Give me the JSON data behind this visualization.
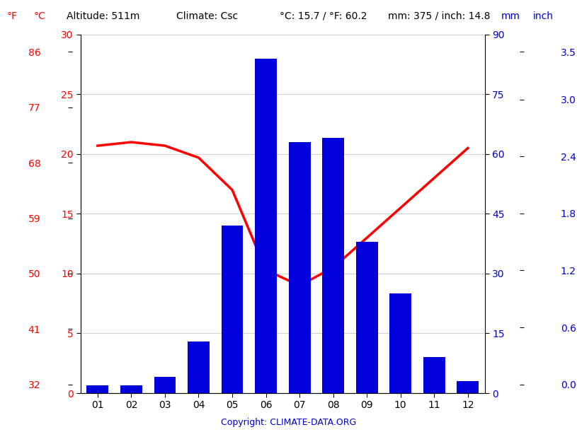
{
  "months": [
    "01",
    "02",
    "03",
    "04",
    "05",
    "06",
    "07",
    "08",
    "09",
    "10",
    "11",
    "12"
  ],
  "temp_c": [
    20.7,
    21.0,
    20.7,
    19.7,
    17.0,
    10.3,
    9.0,
    10.5,
    13.0,
    15.5,
    18.0,
    20.5
  ],
  "precip_mm": [
    2,
    2,
    4,
    13,
    42,
    84,
    63,
    64,
    38,
    25,
    9,
    3
  ],
  "bar_color": "#0000dd",
  "line_color": "#ff0000",
  "ylabel_left_c_min": 0,
  "ylabel_left_c_max": 30,
  "ylabel_right_mm_min": 0,
  "ylabel_right_mm_max": 90,
  "copyright": "Copyright: CLIMATE-DATA.ORG",
  "background_color": "#ffffff",
  "grid_color": "#d0d0d0"
}
